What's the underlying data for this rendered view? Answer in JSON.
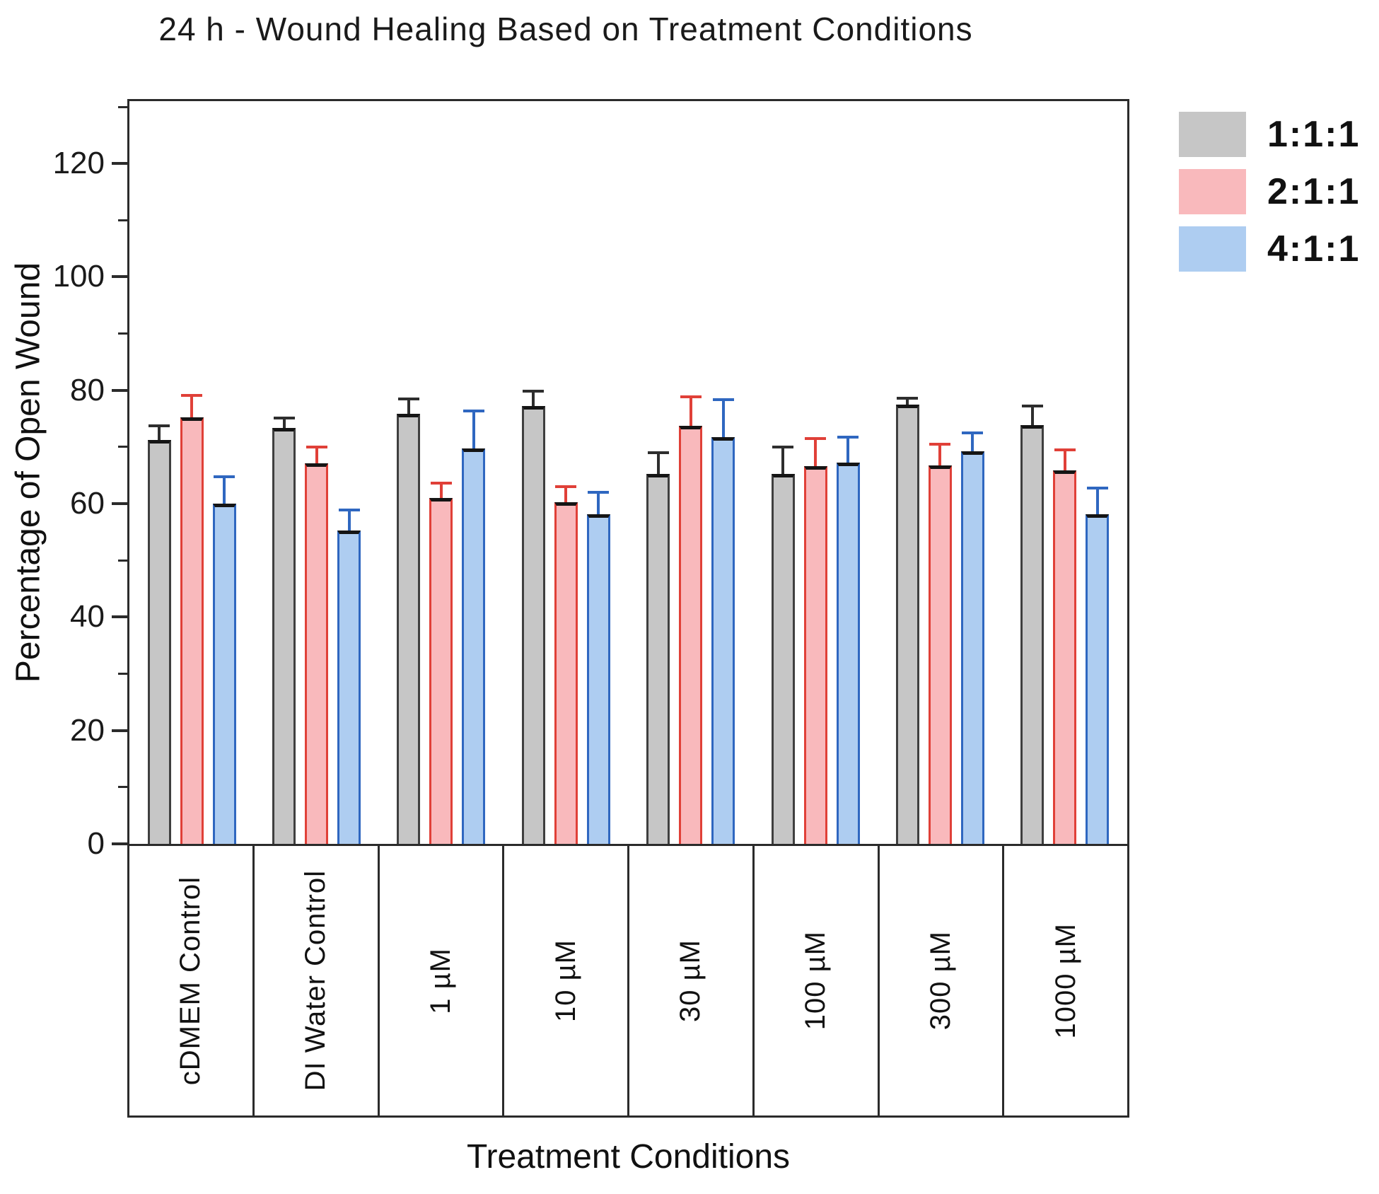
{
  "chart_data": {
    "type": "bar",
    "title": "24 h - Wound Healing Based on Treatment Conditions",
    "xlabel": "Treatment Conditions",
    "ylabel": "Percentage of Open Wound",
    "ylim": [
      0,
      131
    ],
    "yticks_major": [
      0,
      20,
      40,
      60,
      80,
      100,
      120
    ],
    "ytick_minor_step": 10,
    "grid": false,
    "legend_position": "outside-upper-right",
    "bar_top_outline_color": "#151515",
    "categories": [
      "cDMEM Control",
      "DI Water Control",
      "1 µM",
      "10 µM",
      "30 µM",
      "100 µM",
      "300 µM",
      "1000 µM"
    ],
    "series": [
      {
        "name": "1:1:1",
        "fill": "#c6c6c6",
        "border": "#3f3f3f",
        "error_color": "#2e2e2e",
        "values": [
          71.3,
          73.3,
          75.9,
          77.2,
          65.3,
          65.3,
          77.5,
          73.8
        ],
        "errors": [
          2.7,
          2.0,
          2.8,
          2.9,
          3.9,
          4.9,
          1.4,
          3.7
        ]
      },
      {
        "name": "2:1:1",
        "fill": "#f9b9bc",
        "border": "#e04038",
        "error_color": "#e04038",
        "values": [
          75.2,
          67.1,
          61.0,
          60.3,
          73.7,
          66.6,
          66.7,
          65.9
        ],
        "errors": [
          4.2,
          3.2,
          2.9,
          3.0,
          5.4,
          5.1,
          4.1,
          3.9
        ]
      },
      {
        "name": "4:1:1",
        "fill": "#aecdf1",
        "border": "#2f67c0",
        "error_color": "#2f67c0",
        "values": [
          60.0,
          55.3,
          69.8,
          58.1,
          71.7,
          67.2,
          69.2,
          58.1
        ],
        "errors": [
          5.0,
          3.9,
          6.8,
          4.2,
          6.9,
          4.8,
          3.5,
          4.9
        ]
      }
    ]
  }
}
